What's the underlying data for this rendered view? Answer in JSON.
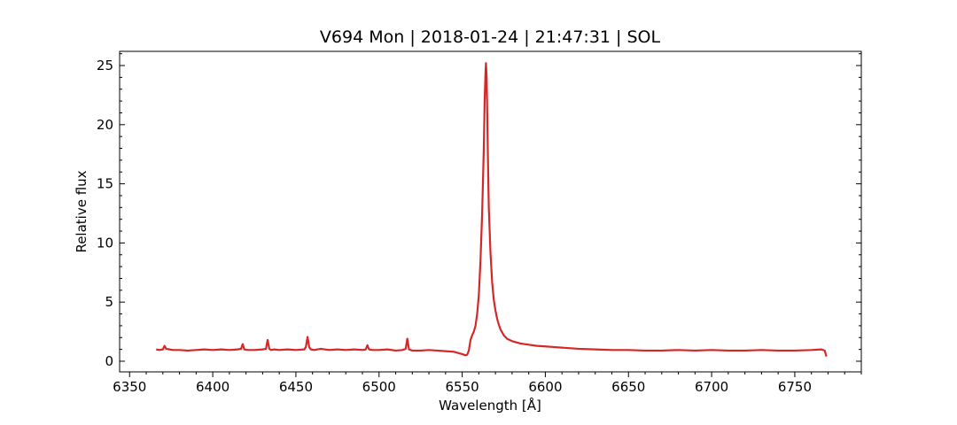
{
  "chart_data": {
    "type": "line",
    "title": "V694 Mon | 2018-01-24 | 21:47:31 | SOL",
    "xlabel": "Wavelength [Å]",
    "ylabel": "Relative flux",
    "xlim": [
      6344,
      6790
    ],
    "ylim": [
      -0.9,
      26.2
    ],
    "xticks": [
      6350,
      6400,
      6450,
      6500,
      6550,
      6600,
      6650,
      6700,
      6750
    ],
    "yticks": [
      0,
      5,
      10,
      15,
      20,
      25
    ],
    "grid": false,
    "series": [
      {
        "color": "#d62728",
        "x": [
          6366,
          6368,
          6370,
          6371,
          6372,
          6374,
          6376,
          6380,
          6385,
          6390,
          6395,
          6400,
          6405,
          6410,
          6415,
          6417,
          6418,
          6419,
          6421,
          6425,
          6430,
          6432,
          6433,
          6434,
          6435,
          6437,
          6440,
          6445,
          6450,
          6455,
          6456,
          6457,
          6458,
          6459,
          6461,
          6465,
          6470,
          6475,
          6480,
          6485,
          6490,
          6492,
          6493,
          6494,
          6496,
          6500,
          6505,
          6510,
          6514,
          6516,
          6517,
          6518,
          6520,
          6525,
          6530,
          6535,
          6540,
          6545,
          6550,
          6552,
          6553,
          6554,
          6555,
          6556,
          6557,
          6558,
          6559,
          6560,
          6561,
          6562,
          6563,
          6563.5,
          6564,
          6564.3,
          6564.7,
          6565,
          6565.5,
          6566,
          6567,
          6568,
          6569,
          6570,
          6571,
          6572,
          6573,
          6575,
          6577,
          6580,
          6585,
          6590,
          6595,
          6600,
          6605,
          6610,
          6620,
          6630,
          6640,
          6650,
          6660,
          6670,
          6680,
          6690,
          6700,
          6710,
          6720,
          6730,
          6740,
          6750,
          6760,
          6766,
          6768,
          6769
        ],
        "y": [
          1.0,
          0.95,
          1.0,
          1.3,
          1.05,
          1.0,
          0.95,
          0.95,
          0.9,
          0.95,
          1.0,
          0.95,
          1.0,
          0.95,
          1.0,
          1.05,
          1.45,
          1.0,
          0.95,
          0.95,
          1.0,
          1.05,
          1.8,
          1.05,
          0.95,
          1.0,
          0.95,
          1.0,
          0.95,
          1.0,
          1.2,
          2.05,
          1.2,
          1.0,
          0.95,
          1.05,
          0.95,
          1.0,
          0.95,
          1.0,
          0.95,
          1.0,
          1.35,
          1.0,
          0.95,
          0.95,
          1.0,
          0.9,
          0.95,
          1.05,
          1.9,
          1.0,
          0.9,
          0.9,
          0.95,
          0.9,
          0.85,
          0.8,
          0.6,
          0.5,
          0.55,
          0.9,
          1.8,
          2.2,
          2.5,
          3.0,
          4.0,
          5.6,
          8.5,
          12.5,
          18.0,
          22.0,
          24.3,
          25.2,
          24.0,
          21.5,
          17.0,
          13.0,
          9.2,
          6.7,
          5.2,
          4.3,
          3.6,
          3.1,
          2.7,
          2.2,
          1.9,
          1.7,
          1.5,
          1.4,
          1.3,
          1.25,
          1.2,
          1.15,
          1.05,
          1.0,
          0.95,
          0.95,
          0.9,
          0.9,
          0.95,
          0.9,
          0.95,
          0.9,
          0.9,
          0.95,
          0.9,
          0.9,
          0.95,
          1.0,
          0.9,
          0.4
        ]
      }
    ]
  }
}
